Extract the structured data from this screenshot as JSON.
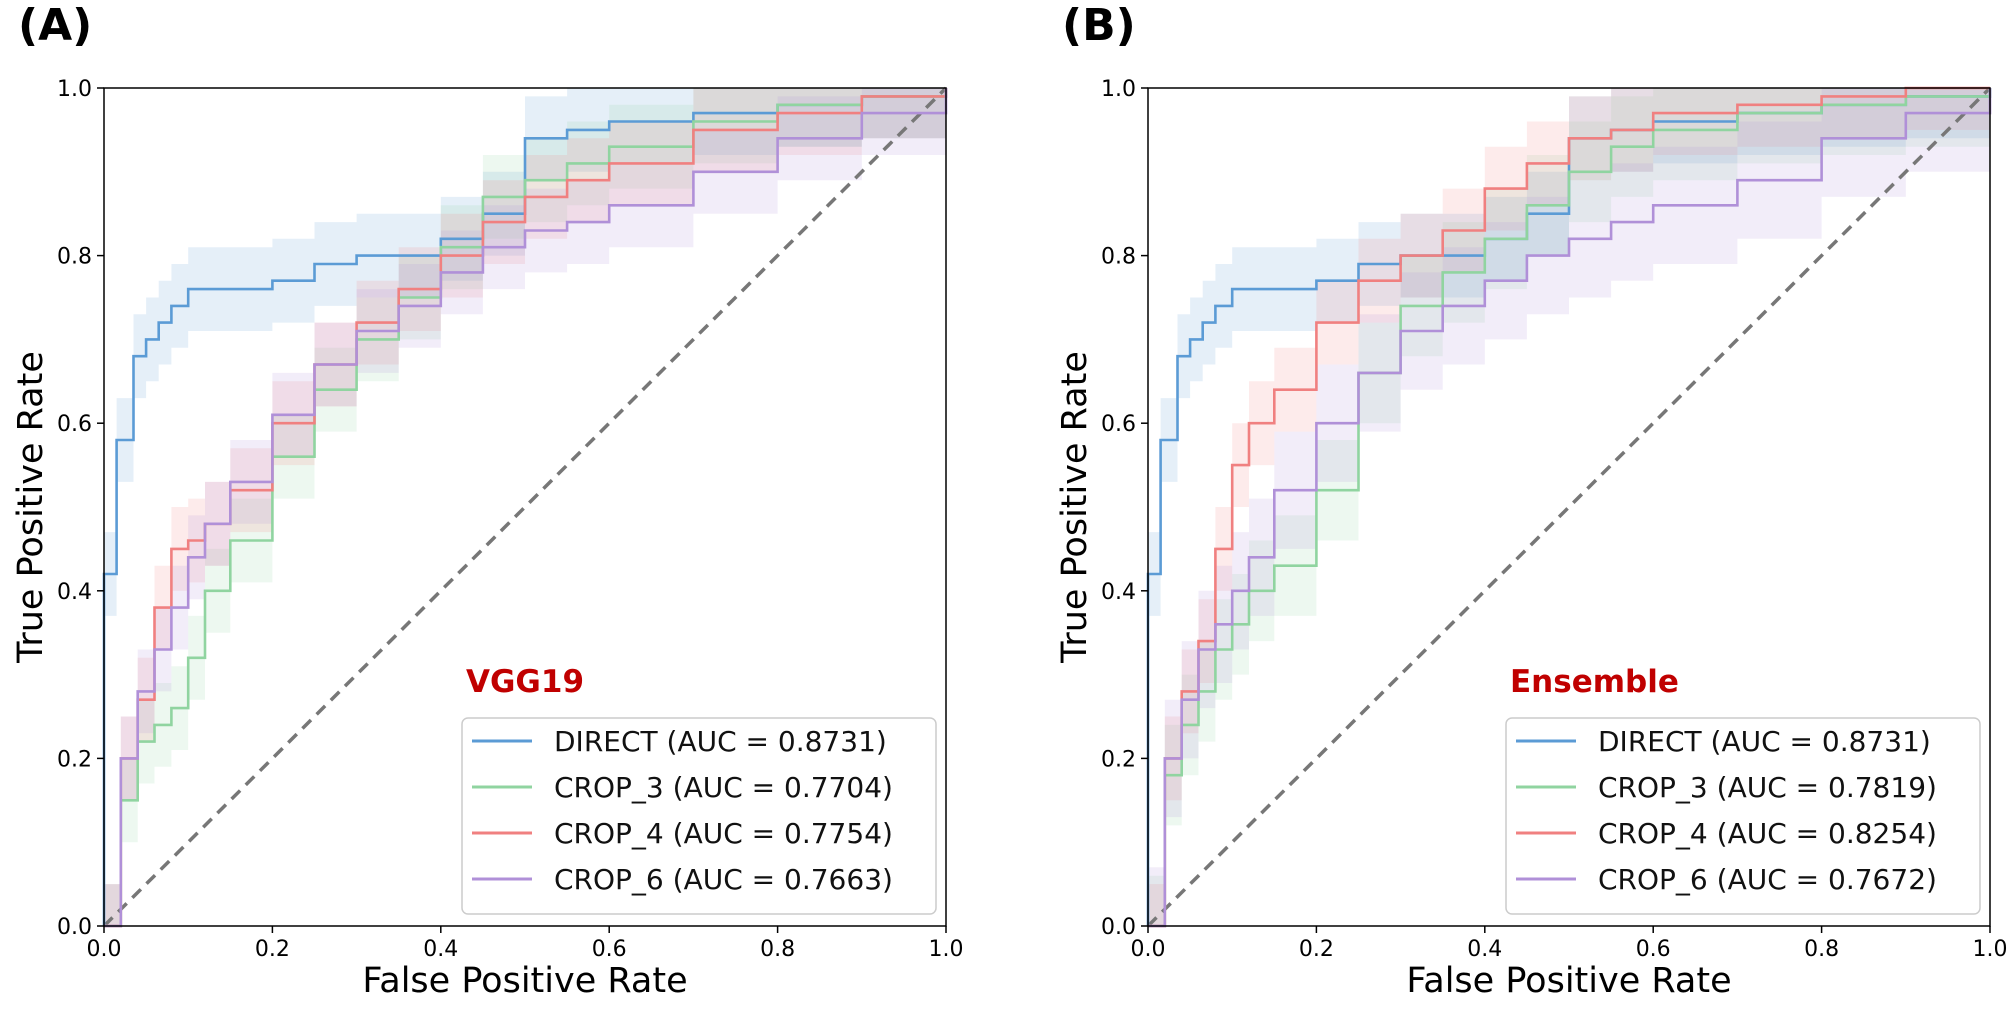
{
  "chart_data": [
    {
      "type": "line",
      "panel_label": "(A)",
      "model_name": "VGG19",
      "xlabel": "False Positive Rate",
      "ylabel": "True Positive Rate",
      "xlim": [
        0.0,
        1.0
      ],
      "ylim": [
        0.0,
        1.0
      ],
      "x_ticks": [
        "0.0",
        "0.2",
        "0.4",
        "0.6",
        "0.8",
        "1.0"
      ],
      "y_ticks": [
        "0.0",
        "0.2",
        "0.4",
        "0.6",
        "0.8",
        "1.0"
      ],
      "legend_location": "lower-right",
      "chance_line": true,
      "series": [
        {
          "name": "DIRECT",
          "label": "DIRECT (AUC = 0.8731)",
          "color": "#5b9bd5",
          "band": 0.05,
          "fpr": [
            0,
            0,
            0.015,
            0.015,
            0.035,
            0.035,
            0.05,
            0.065,
            0.08,
            0.1,
            0.15,
            0.2,
            0.25,
            0.3,
            0.4,
            0.45,
            0.5,
            0.55,
            0.6,
            0.7,
            0.8,
            0.9,
            1.0
          ],
          "tpr": [
            0,
            0.42,
            0.42,
            0.58,
            0.58,
            0.68,
            0.7,
            0.72,
            0.74,
            0.76,
            0.76,
            0.77,
            0.79,
            0.8,
            0.82,
            0.85,
            0.94,
            0.95,
            0.96,
            0.97,
            0.98,
            0.99,
            1.0
          ]
        },
        {
          "name": "CROP_3",
          "label": "CROP_3 (AUC = 0.7704)",
          "color": "#90d4a0",
          "band": 0.05,
          "fpr": [
            0,
            0.02,
            0.04,
            0.06,
            0.08,
            0.1,
            0.12,
            0.15,
            0.2,
            0.25,
            0.3,
            0.35,
            0.4,
            0.45,
            0.5,
            0.55,
            0.6,
            0.7,
            0.8,
            0.9,
            1.0
          ],
          "tpr": [
            0,
            0.15,
            0.22,
            0.24,
            0.26,
            0.32,
            0.4,
            0.46,
            0.56,
            0.64,
            0.7,
            0.75,
            0.81,
            0.87,
            0.89,
            0.91,
            0.93,
            0.96,
            0.98,
            0.99,
            1.0
          ]
        },
        {
          "name": "CROP_4",
          "label": "CROP_4 (AUC = 0.7754)",
          "color": "#f08080",
          "band": 0.05,
          "fpr": [
            0,
            0.02,
            0.04,
            0.06,
            0.08,
            0.1,
            0.12,
            0.15,
            0.2,
            0.25,
            0.3,
            0.35,
            0.4,
            0.45,
            0.5,
            0.55,
            0.6,
            0.7,
            0.8,
            0.9,
            1.0
          ],
          "tpr": [
            0,
            0.2,
            0.27,
            0.38,
            0.45,
            0.46,
            0.48,
            0.52,
            0.6,
            0.67,
            0.72,
            0.76,
            0.8,
            0.84,
            0.87,
            0.89,
            0.91,
            0.95,
            0.97,
            0.99,
            1.0
          ]
        },
        {
          "name": "CROP_6",
          "label": "CROP_6 (AUC = 0.7663)",
          "color": "#b090d8",
          "band": 0.05,
          "fpr": [
            0,
            0.02,
            0.04,
            0.06,
            0.08,
            0.1,
            0.12,
            0.15,
            0.2,
            0.25,
            0.3,
            0.35,
            0.4,
            0.45,
            0.5,
            0.55,
            0.6,
            0.7,
            0.8,
            0.9,
            1.0
          ],
          "tpr": [
            0,
            0.2,
            0.28,
            0.33,
            0.38,
            0.44,
            0.48,
            0.53,
            0.61,
            0.67,
            0.71,
            0.74,
            0.78,
            0.81,
            0.83,
            0.84,
            0.86,
            0.9,
            0.94,
            0.97,
            1.0
          ]
        }
      ]
    },
    {
      "type": "line",
      "panel_label": "(B)",
      "model_name": "Ensemble",
      "xlabel": "False Positive Rate",
      "ylabel": "True Positive Rate",
      "xlim": [
        0.0,
        1.0
      ],
      "ylim": [
        0.0,
        1.0
      ],
      "x_ticks": [
        "0.0",
        "0.2",
        "0.4",
        "0.6",
        "0.8",
        "1.0"
      ],
      "y_ticks": [
        "0.0",
        "0.2",
        "0.4",
        "0.6",
        "0.8",
        "1.0"
      ],
      "legend_location": "lower-right",
      "chance_line": true,
      "series": [
        {
          "name": "DIRECT",
          "label": "DIRECT (AUC = 0.8731)",
          "color": "#5b9bd5",
          "band": 0.05,
          "fpr": [
            0,
            0,
            0.015,
            0.015,
            0.035,
            0.035,
            0.05,
            0.065,
            0.08,
            0.1,
            0.15,
            0.2,
            0.25,
            0.3,
            0.4,
            0.45,
            0.5,
            0.55,
            0.6,
            0.7,
            0.8,
            0.9,
            1.0
          ],
          "tpr": [
            0,
            0.42,
            0.42,
            0.58,
            0.58,
            0.68,
            0.7,
            0.72,
            0.74,
            0.76,
            0.76,
            0.77,
            0.79,
            0.8,
            0.82,
            0.85,
            0.94,
            0.95,
            0.96,
            0.97,
            0.98,
            0.99,
            1.0
          ]
        },
        {
          "name": "CROP_3",
          "label": "CROP_3 (AUC = 0.7819)",
          "color": "#90d4a0",
          "band": 0.06,
          "fpr": [
            0,
            0.02,
            0.04,
            0.06,
            0.08,
            0.1,
            0.12,
            0.15,
            0.2,
            0.25,
            0.3,
            0.35,
            0.4,
            0.45,
            0.5,
            0.55,
            0.6,
            0.7,
            0.8,
            0.9,
            1.0
          ],
          "tpr": [
            0,
            0.18,
            0.24,
            0.28,
            0.33,
            0.36,
            0.4,
            0.43,
            0.52,
            0.66,
            0.74,
            0.78,
            0.82,
            0.86,
            0.9,
            0.93,
            0.95,
            0.97,
            0.98,
            0.99,
            1.0
          ]
        },
        {
          "name": "CROP_4",
          "label": "CROP_4 (AUC = 0.8254)",
          "color": "#f08080",
          "band": 0.05,
          "fpr": [
            0,
            0.02,
            0.04,
            0.06,
            0.08,
            0.1,
            0.12,
            0.15,
            0.2,
            0.25,
            0.3,
            0.35,
            0.4,
            0.45,
            0.5,
            0.55,
            0.6,
            0.7,
            0.8,
            0.9,
            1.0
          ],
          "tpr": [
            0,
            0.2,
            0.28,
            0.34,
            0.45,
            0.55,
            0.6,
            0.64,
            0.72,
            0.77,
            0.8,
            0.83,
            0.88,
            0.91,
            0.94,
            0.95,
            0.97,
            0.98,
            0.99,
            1.0,
            1.0
          ]
        },
        {
          "name": "CROP_6",
          "label": "CROP_6 (AUC = 0.7672)",
          "color": "#b090d8",
          "band": 0.07,
          "fpr": [
            0,
            0.02,
            0.04,
            0.06,
            0.08,
            0.1,
            0.12,
            0.15,
            0.2,
            0.25,
            0.3,
            0.35,
            0.4,
            0.45,
            0.5,
            0.55,
            0.6,
            0.7,
            0.8,
            0.9,
            1.0
          ],
          "tpr": [
            0,
            0.2,
            0.27,
            0.33,
            0.36,
            0.4,
            0.44,
            0.52,
            0.6,
            0.66,
            0.71,
            0.74,
            0.77,
            0.8,
            0.82,
            0.84,
            0.86,
            0.89,
            0.94,
            0.97,
            1.0
          ]
        }
      ]
    }
  ]
}
